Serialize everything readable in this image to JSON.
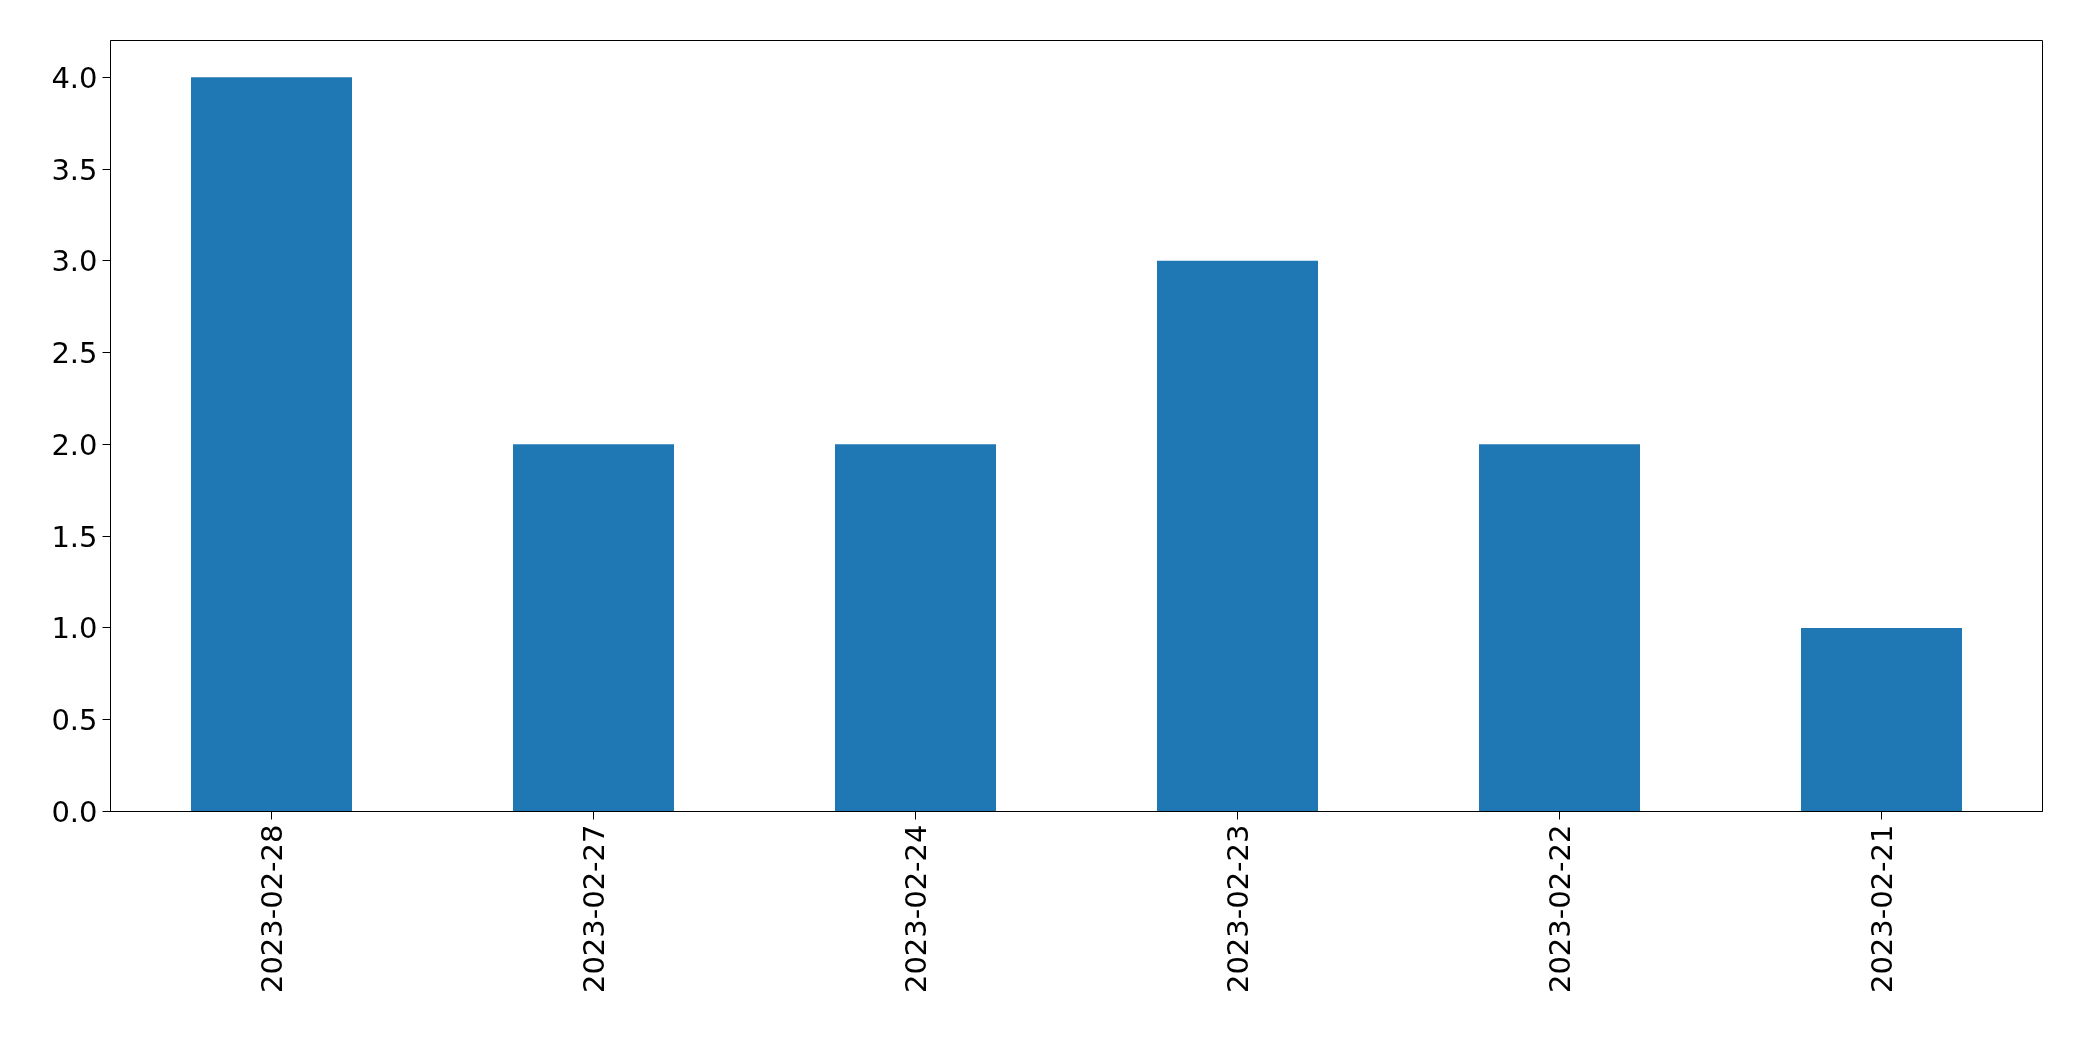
{
  "chart_data": {
    "type": "bar",
    "categories": [
      "2023-02-28",
      "2023-02-27",
      "2023-02-24",
      "2023-02-23",
      "2023-02-22",
      "2023-02-21"
    ],
    "values": [
      4,
      2,
      2,
      3,
      2,
      1
    ],
    "color": "#1f77b4",
    "ylim": [
      0,
      4.2
    ],
    "yticks": [
      {
        "value": 0,
        "label": "0.0"
      },
      {
        "value": 0.5,
        "label": "0.5"
      },
      {
        "value": 1,
        "label": "1.0"
      },
      {
        "value": 1.5,
        "label": "1.5"
      },
      {
        "value": 2,
        "label": "2.0"
      },
      {
        "value": 2.5,
        "label": "2.5"
      },
      {
        "value": 3,
        "label": "3.0"
      },
      {
        "value": 3.5,
        "label": "3.5"
      },
      {
        "value": 4,
        "label": "4.0"
      }
    ],
    "grid": false
  }
}
